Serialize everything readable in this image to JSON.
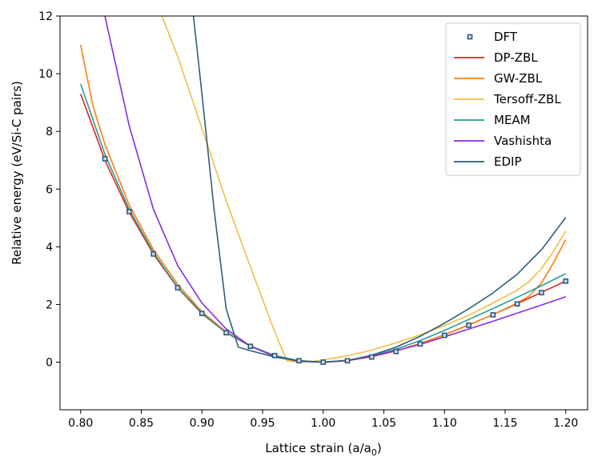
{
  "chart_data": {
    "type": "line",
    "title": "",
    "xlabel": "Lattice strain (a/a",
    "xlabel_sub": "0",
    "xlabel_close": ")",
    "ylabel": "Relative energy (eV/Si-C pairs)",
    "xlim": [
      0.783,
      1.218
    ],
    "ylim": [
      -1.65,
      12
    ],
    "xticks": [
      0.8,
      0.85,
      0.9,
      0.95,
      1.0,
      1.05,
      1.1,
      1.15,
      1.2
    ],
    "xtick_labels": [
      "0.80",
      "0.85",
      "0.90",
      "0.95",
      "1.00",
      "1.05",
      "1.10",
      "1.15",
      "1.20"
    ],
    "yticks": [
      0,
      2,
      4,
      6,
      8,
      10,
      12
    ],
    "ytick_labels": [
      "0",
      "2",
      "4",
      "6",
      "8",
      "10",
      "12"
    ],
    "legend_position": "top-right",
    "series": [
      {
        "name": "DFT",
        "kind": "markers",
        "color": "#1f4e79",
        "x": [
          0.82,
          0.84,
          0.86,
          0.88,
          0.9,
          0.92,
          0.94,
          0.96,
          0.98,
          1.0,
          1.02,
          1.04,
          1.06,
          1.08,
          1.1,
          1.12,
          1.14,
          1.16,
          1.18,
          1.2
        ],
        "y": [
          7.05,
          5.22,
          3.75,
          2.58,
          1.69,
          1.02,
          0.55,
          0.23,
          0.05,
          0.0,
          0.05,
          0.18,
          0.37,
          0.63,
          0.93,
          1.28,
          1.64,
          2.02,
          2.41,
          2.81
        ]
      },
      {
        "name": "DP-ZBL",
        "kind": "line",
        "color": "#d62728",
        "x": [
          0.8,
          0.82,
          0.84,
          0.86,
          0.88,
          0.9,
          0.92,
          0.94,
          0.96,
          0.98,
          1.0,
          1.02,
          1.04,
          1.06,
          1.08,
          1.1,
          1.12,
          1.14,
          1.16,
          1.18,
          1.2
        ],
        "y": [
          9.3,
          7.0,
          5.2,
          3.75,
          2.58,
          1.68,
          1.02,
          0.55,
          0.23,
          0.05,
          0.0,
          0.05,
          0.19,
          0.39,
          0.65,
          0.95,
          1.29,
          1.65,
          2.03,
          2.42,
          2.81
        ]
      },
      {
        "name": "GW-ZBL",
        "kind": "line",
        "color": "#ff7f0e",
        "x": [
          0.8,
          0.81,
          0.82,
          0.84,
          0.86,
          0.88,
          0.9,
          0.92,
          0.94,
          0.96,
          0.98,
          1.0,
          1.02,
          1.04,
          1.06,
          1.08,
          1.1,
          1.12,
          1.14,
          1.16,
          1.17,
          1.18,
          1.19,
          1.2
        ],
        "y": [
          11.0,
          8.9,
          7.55,
          5.45,
          3.9,
          2.7,
          1.75,
          1.05,
          0.56,
          0.23,
          0.05,
          0.0,
          0.05,
          0.19,
          0.39,
          0.65,
          0.95,
          1.29,
          1.65,
          2.05,
          2.3,
          2.75,
          3.45,
          4.25
        ]
      },
      {
        "name": "Tersoff-ZBL",
        "kind": "line",
        "color": "#f5bd42",
        "x": [
          0.867,
          0.88,
          0.9,
          0.92,
          0.94,
          0.96,
          0.97,
          0.98,
          0.99,
          1.0,
          1.02,
          1.04,
          1.06,
          1.08,
          1.1,
          1.12,
          1.14,
          1.16,
          1.17,
          1.18,
          1.19,
          1.2
        ],
        "y": [
          12.0,
          10.6,
          8.1,
          5.6,
          3.3,
          1.05,
          0.05,
          0.0,
          0.02,
          0.08,
          0.22,
          0.42,
          0.67,
          0.95,
          1.27,
          1.63,
          2.05,
          2.5,
          2.8,
          3.25,
          3.85,
          4.55
        ]
      },
      {
        "name": "MEAM",
        "kind": "line",
        "color": "#2a9d8f",
        "x": [
          0.8,
          0.82,
          0.84,
          0.86,
          0.88,
          0.9,
          0.92,
          0.94,
          0.96,
          0.98,
          1.0,
          1.02,
          1.04,
          1.06,
          1.08,
          1.1,
          1.12,
          1.14,
          1.16,
          1.18,
          1.2
        ],
        "y": [
          9.65,
          7.2,
          5.3,
          3.8,
          2.6,
          1.7,
          1.03,
          0.56,
          0.23,
          0.05,
          0.0,
          0.06,
          0.22,
          0.45,
          0.75,
          1.1,
          1.48,
          1.86,
          2.25,
          2.65,
          3.07
        ]
      },
      {
        "name": "Vashishta",
        "kind": "line",
        "color": "#8a2be2",
        "x": [
          0.82,
          0.84,
          0.86,
          0.88,
          0.9,
          0.92,
          0.94,
          0.96,
          0.98,
          1.0,
          1.02,
          1.04,
          1.06,
          1.08,
          1.1,
          1.12,
          1.14,
          1.16,
          1.18,
          1.2
        ],
        "y": [
          12.0,
          8.2,
          5.3,
          3.35,
          2.05,
          1.15,
          0.55,
          0.2,
          0.03,
          0.0,
          0.06,
          0.2,
          0.4,
          0.62,
          0.88,
          1.15,
          1.42,
          1.7,
          1.98,
          2.27
        ]
      },
      {
        "name": "EDIP",
        "kind": "line",
        "color": "#2f5f7a",
        "x": [
          0.893,
          0.9,
          0.91,
          0.92,
          0.93,
          0.94,
          0.96,
          0.98,
          1.0,
          1.02,
          1.04,
          1.06,
          1.08,
          1.1,
          1.12,
          1.14,
          1.16,
          1.18,
          1.2
        ],
        "y": [
          12.0,
          9.3,
          5.3,
          1.85,
          0.52,
          0.4,
          0.18,
          0.04,
          0.0,
          0.06,
          0.24,
          0.52,
          0.9,
          1.35,
          1.85,
          2.4,
          3.05,
          3.9,
          5.02
        ]
      }
    ]
  }
}
